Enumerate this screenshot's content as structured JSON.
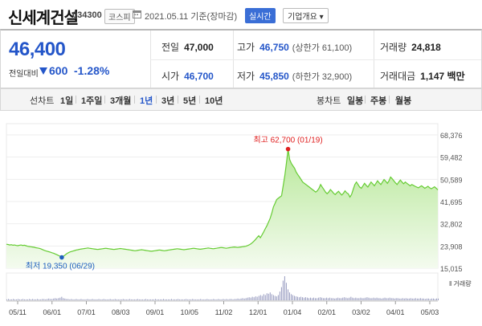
{
  "header": {
    "stock_name": "신세계건설",
    "stock_code": "034300",
    "market": "코스피",
    "date_text": "2021.05.11 기준(장마감)",
    "realtime_label": "실시간",
    "corp_info_label": "기업개요 ▾"
  },
  "summary": {
    "price": "46,400",
    "change_label": "전일대비",
    "change_value": "600",
    "change_pct": "-1.28%",
    "prev_close_label": "전일",
    "prev_close": "47,000",
    "high_label": "고가",
    "high": "46,750",
    "upper_limit": "(상한가 61,100)",
    "volume_label": "거래량",
    "volume": "24,818",
    "open_label": "시가",
    "open": "46,700",
    "low_label": "저가",
    "low": "45,850",
    "lower_limit": "(하한가 32,900)",
    "amount_label": "거래대금",
    "amount": "1,147 백만"
  },
  "toolbar": {
    "line_chart_label": "선차트",
    "periods": [
      "1일",
      "1주일",
      "3개월",
      "1년",
      "3년",
      "5년",
      "10년"
    ],
    "selected_period": "1년",
    "candle_chart_label": "봉차트",
    "candle_periods": [
      "일봉",
      "주봉",
      "월봉"
    ]
  },
  "colors": {
    "accent": "#2456c9",
    "line": "#66cc33",
    "area_top": "#b8e89a",
    "high_marker": "#e02020",
    "low_marker": "#1f5fbf",
    "volume_bar": "#8a8fb8"
  },
  "chart_data": {
    "type": "area",
    "ylim": [
      15015,
      68376
    ],
    "y_ticks": [
      15015,
      23908,
      32802,
      41695,
      50589,
      59482,
      68376
    ],
    "y_tick_labels": [
      "15,015",
      "23,908",
      "32,802",
      "41,695",
      "50,589",
      "59,482",
      "68,376"
    ],
    "x_tick_labels": [
      "05/11",
      "06/01",
      "07/01",
      "08/03",
      "09/01",
      "10/05",
      "11/02",
      "12/01",
      "01/04",
      "02/01",
      "03/02",
      "04/01",
      "05/03"
    ],
    "high_label": "최고 62,700 (01/19)",
    "low_label": "최저 19,350 (06/29)",
    "high": {
      "x_index": 173,
      "value": 62700
    },
    "low": {
      "x_index": 34,
      "value": 19350
    },
    "series": [
      {
        "values": [
          24600,
          24500,
          24300,
          24400,
          24200,
          24300,
          24100,
          24000,
          24200,
          24300,
          24100,
          24200,
          24000,
          23800,
          23700,
          23600,
          23500,
          23400,
          23200,
          23100,
          23000,
          22800,
          22500,
          22200,
          22000,
          21800,
          21600,
          21400,
          21200,
          21000,
          20700,
          20400,
          20100,
          19800,
          19350,
          19800,
          20300,
          20800,
          21200,
          21500,
          21700,
          21900,
          22100,
          22300,
          22400,
          22600,
          22700,
          22800,
          22900,
          23000,
          23100,
          23000,
          22900,
          22800,
          22700,
          22600,
          22500,
          22600,
          22700,
          22800,
          22900,
          23000,
          22900,
          22800,
          22700,
          22600,
          22500,
          22600,
          22700,
          22800,
          22900,
          22800,
          22700,
          22600,
          22500,
          22400,
          22300,
          22200,
          22100,
          22000,
          22100,
          22200,
          22300,
          22400,
          22300,
          22200,
          22100,
          22000,
          21900,
          21800,
          21900,
          22000,
          22100,
          22200,
          22300,
          22200,
          22100,
          22000,
          22100,
          22200,
          22300,
          22400,
          22500,
          22600,
          22700,
          22800,
          22700,
          22600,
          22500,
          22400,
          22500,
          22600,
          22700,
          22800,
          22900,
          23000,
          22900,
          22800,
          22700,
          22600,
          22700,
          22800,
          22900,
          23000,
          23100,
          23000,
          22900,
          22800,
          22900,
          23000,
          23100,
          23200,
          23300,
          23200,
          23100,
          23000,
          23100,
          23200,
          23300,
          23400,
          23500,
          23400,
          23300,
          23400,
          23500,
          23600,
          23700,
          23800,
          24000,
          24300,
          24700,
          25200,
          25800,
          26500,
          27300,
          28000,
          27200,
          28300,
          29500,
          30800,
          32000,
          33500,
          35000,
          37000,
          39500,
          41000,
          42500,
          43000,
          43500,
          44000,
          48000,
          52000,
          57000,
          62700,
          58500,
          57000,
          56000,
          55000,
          53500,
          52500,
          51500,
          50500,
          49500,
          49000,
          48500,
          48000,
          47500,
          47000,
          46500,
          46000,
          45500,
          46000,
          47000,
          48500,
          47500,
          46500,
          45500,
          44800,
          45500,
          46500,
          45800,
          45000,
          44500,
          45200,
          45800,
          45000,
          44300,
          45000,
          46000,
          45200,
          44800,
          43500,
          44500,
          46500,
          48500,
          49500,
          48500,
          47500,
          47000,
          48000,
          49000,
          48200,
          47500,
          48500,
          49500,
          48800,
          48000,
          49000,
          50000,
          49200,
          48500,
          49500,
          50500,
          49800,
          49000,
          50000,
          51500,
          50800,
          50000,
          49200,
          48500,
          49500,
          50300,
          49500,
          48800,
          49500,
          49000,
          48500,
          48000,
          48500,
          48200,
          47800,
          47500,
          47200,
          47600,
          48000,
          47500,
          47000,
          47400,
          47800,
          47200,
          46800,
          47200,
          47600,
          47000,
          46400
        ]
      }
    ],
    "volume_series": [
      2,
      3,
      2,
      2,
      3,
      2,
      2,
      3,
      2,
      2,
      3,
      2,
      2,
      2,
      3,
      2,
      3,
      2,
      2,
      3,
      2,
      2,
      3,
      3,
      2,
      3,
      4,
      3,
      3,
      4,
      5,
      4,
      5,
      6,
      8,
      5,
      4,
      3,
      3,
      2,
      3,
      2,
      2,
      3,
      2,
      2,
      3,
      2,
      2,
      2,
      3,
      2,
      2,
      3,
      2,
      2,
      2,
      3,
      2,
      2,
      3,
      2,
      2,
      2,
      3,
      2,
      2,
      3,
      2,
      2,
      2,
      2,
      3,
      2,
      2,
      2,
      3,
      2,
      2,
      2,
      2,
      3,
      2,
      2,
      2,
      2,
      3,
      2,
      2,
      2,
      2,
      2,
      3,
      2,
      2,
      2,
      2,
      3,
      2,
      2,
      2,
      2,
      3,
      2,
      2,
      2,
      3,
      2,
      2,
      2,
      2,
      3,
      2,
      2,
      2,
      3,
      2,
      2,
      2,
      2,
      3,
      2,
      2,
      2,
      3,
      2,
      2,
      2,
      3,
      2,
      2,
      3,
      2,
      2,
      3,
      2,
      3,
      2,
      3,
      3,
      2,
      3,
      3,
      4,
      3,
      4,
      5,
      4,
      5,
      6,
      7,
      6,
      8,
      7,
      9,
      8,
      10,
      12,
      10,
      14,
      12,
      16,
      15,
      18,
      14,
      12,
      10,
      9,
      12,
      20,
      30,
      45,
      55,
      40,
      25,
      18,
      14,
      12,
      10,
      9,
      8,
      7,
      8,
      7,
      6,
      7,
      6,
      5,
      6,
      5,
      6,
      5,
      5,
      6,
      7,
      6,
      5,
      5,
      6,
      5,
      6,
      5,
      5,
      4,
      5,
      6,
      5,
      5,
      6,
      7,
      6,
      5,
      6,
      8,
      6,
      5,
      6,
      5,
      5,
      6,
      5,
      5,
      6,
      7,
      6,
      5,
      5,
      6,
      5,
      6,
      5,
      5,
      4,
      5,
      6,
      5,
      5,
      6,
      5,
      5,
      4,
      5,
      5,
      4,
      4,
      5,
      4,
      5,
      4,
      4,
      5,
      4,
      4,
      5,
      4,
      4,
      5,
      4,
      4,
      3,
      4,
      4,
      3,
      4,
      4,
      3,
      4,
      4
    ],
    "volume_label": "거래량"
  }
}
